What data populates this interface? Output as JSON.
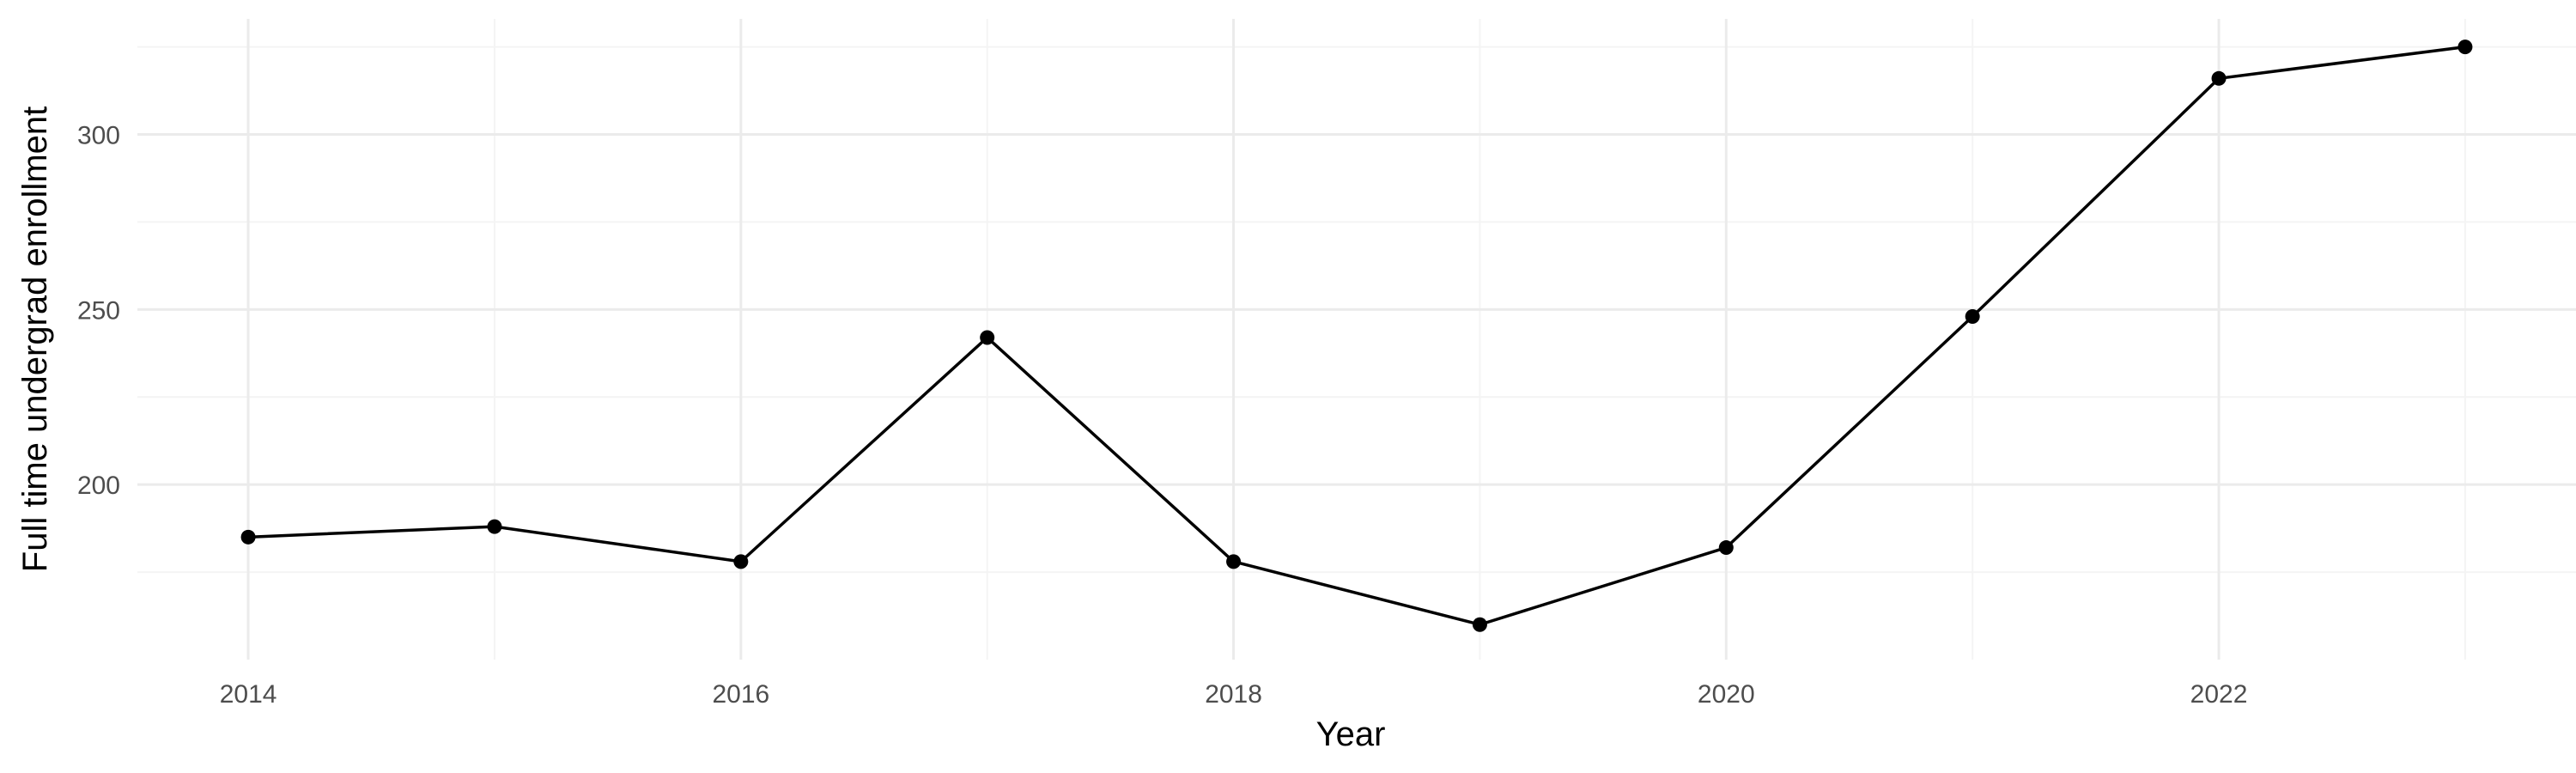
{
  "chart_data": {
    "type": "line",
    "title": "",
    "xlabel": "Year",
    "ylabel": "Full time undergrad enrollment",
    "x": [
      2014,
      2015,
      2016,
      2017,
      2018,
      2019,
      2020,
      2021,
      2022,
      2023
    ],
    "series": [
      {
        "values": [
          185,
          188,
          178,
          242,
          178,
          160,
          182,
          248,
          316,
          325
        ]
      }
    ],
    "xlim": [
      2013.55,
      2023.45
    ],
    "ylim": [
      150,
      333
    ],
    "x_major_ticks": [
      2014,
      2016,
      2018,
      2020,
      2022
    ],
    "x_tick_labels": [
      "2014",
      "2016",
      "2018",
      "2020",
      "2022"
    ],
    "x_minor_ticks": [
      2015,
      2017,
      2019,
      2021,
      2023
    ],
    "y_major_ticks": [
      200,
      250,
      300
    ],
    "y_tick_labels": [
      "200",
      "250",
      "300"
    ],
    "y_minor_ticks": [
      175,
      225,
      275,
      325
    ],
    "grid": true,
    "legend": "none",
    "colors": {
      "line": "#000000",
      "point": "#000000",
      "grid_major": "#ebebeb",
      "grid_minor": "#f4f4f4",
      "tick_text": "#4d4d4d"
    }
  }
}
